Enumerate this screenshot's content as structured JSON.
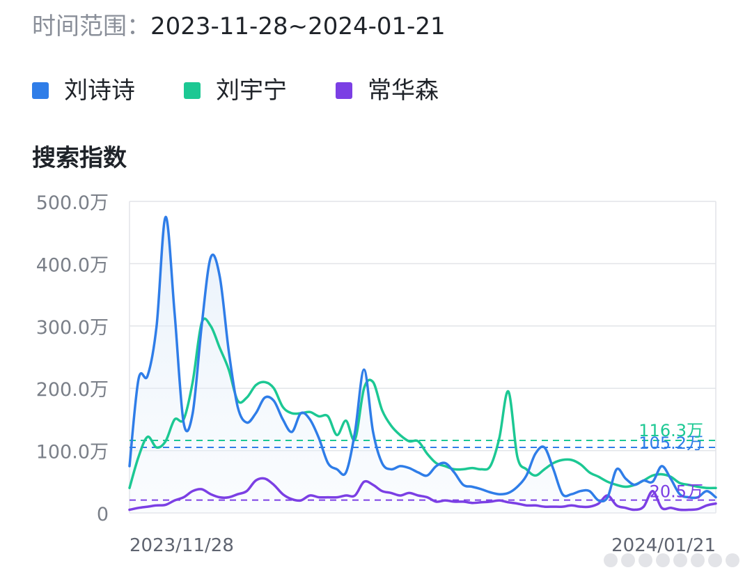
{
  "header": {
    "range_label": "时间范围：",
    "range_value": "2023-11-28~2024-01-21"
  },
  "legend": [
    {
      "name": "刘诗诗",
      "color": "#2f7de8"
    },
    {
      "name": "刘宇宁",
      "color": "#1cc893"
    },
    {
      "name": "常华森",
      "color": "#7b3fe4"
    }
  ],
  "section_title": "搜索指数",
  "chart_data": {
    "type": "line",
    "ylim": [
      0,
      500
    ],
    "y_unit": "万",
    "yticks": [
      "500.0万",
      "400.0万",
      "300.0万",
      "200.0万",
      "100.0万",
      "0"
    ],
    "x_start_label": "2023/11/28",
    "x_end_label": "2024/01/21",
    "grid": true,
    "series": [
      {
        "name": "刘诗诗",
        "color": "#2f7de8",
        "average": 105.2,
        "average_label": "105.2万",
        "values": [
          75,
          215,
          220,
          300,
          475,
          320,
          145,
          160,
          300,
          410,
          380,
          260,
          170,
          145,
          160,
          185,
          180,
          150,
          130,
          160,
          150,
          120,
          80,
          70,
          65,
          130,
          230,
          130,
          80,
          70,
          75,
          72,
          65,
          60,
          75,
          80,
          65,
          45,
          42,
          38,
          33,
          30,
          32,
          42,
          60,
          95,
          105,
          70,
          30,
          30,
          35,
          35,
          20,
          25,
          70,
          55,
          45,
          52,
          50,
          75,
          55,
          30,
          25,
          25,
          35,
          25
        ]
      },
      {
        "name": "刘宇宁",
        "color": "#1cc893",
        "average": 116.3,
        "average_label": "116.3万",
        "values": [
          40,
          90,
          122,
          105,
          115,
          150,
          150,
          210,
          305,
          300,
          265,
          230,
          180,
          185,
          205,
          210,
          200,
          170,
          160,
          160,
          162,
          155,
          155,
          125,
          148,
          118,
          200,
          210,
          165,
          140,
          125,
          115,
          115,
          95,
          80,
          75,
          70,
          70,
          72,
          70,
          75,
          120,
          195,
          90,
          70,
          60,
          70,
          80,
          85,
          85,
          78,
          65,
          58,
          50,
          45,
          42,
          45,
          52,
          60,
          62,
          58,
          48,
          45,
          42,
          40,
          40
        ]
      },
      {
        "name": "常华森",
        "color": "#7b3fe4",
        "average": 20.5,
        "average_label": "20.5万",
        "values": [
          5,
          8,
          10,
          12,
          13,
          20,
          25,
          35,
          38,
          30,
          25,
          25,
          30,
          35,
          52,
          55,
          45,
          30,
          22,
          20,
          28,
          25,
          25,
          25,
          28,
          28,
          50,
          45,
          35,
          32,
          28,
          32,
          28,
          25,
          18,
          20,
          18,
          18,
          16,
          17,
          18,
          20,
          17,
          15,
          12,
          12,
          10,
          10,
          10,
          12,
          10,
          10,
          15,
          28,
          12,
          8,
          5,
          10,
          35,
          8,
          8,
          5,
          5,
          6,
          12,
          15
        ]
      }
    ]
  }
}
